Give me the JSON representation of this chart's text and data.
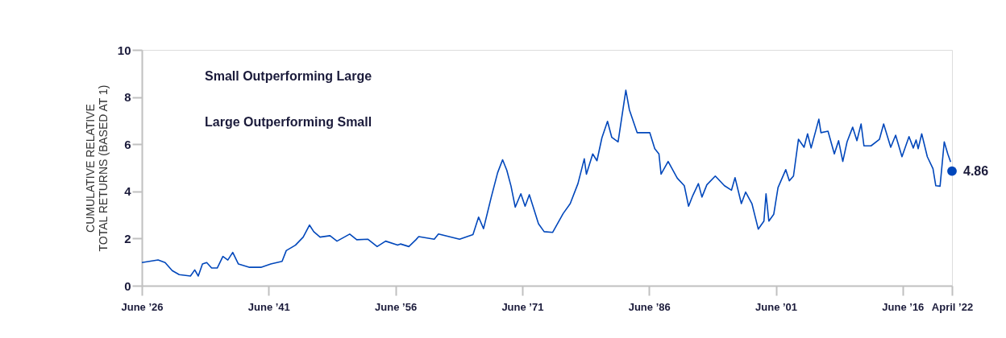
{
  "chart_data": {
    "type": "line",
    "ylabel": "CUMULATIVE RELATIVE TOTAL RETURNS (BASED AT 1)",
    "x": [
      "1926-06",
      "1928-05",
      "1929-03",
      "1930-01",
      "1930-11",
      "1932-03",
      "1932-09",
      "1933-02",
      "1933-08",
      "1934-02",
      "1934-09",
      "1935-05",
      "1936-01",
      "1936-08",
      "1937-03",
      "1937-11",
      "1939-03",
      "1940-07",
      "1941-09",
      "1943-01",
      "1943-07",
      "1944-08",
      "1945-07",
      "1946-04",
      "1946-10",
      "1947-07",
      "1948-09",
      "1949-07",
      "1951-01",
      "1951-11",
      "1953-03",
      "1954-04",
      "1955-04",
      "1956-09",
      "1957-01",
      "1958-01",
      "1958-11",
      "1959-03",
      "1961-01",
      "1961-07",
      "1964-01",
      "1965-08",
      "1966-04",
      "1966-11",
      "1967-10",
      "1968-07",
      "1969-02",
      "1969-08",
      "1970-02",
      "1970-08",
      "1971-04",
      "1971-10",
      "1972-04",
      "1973-05",
      "1974-01",
      "1975-01",
      "1976-04",
      "1977-02",
      "1978-01",
      "1978-10",
      "1979-01",
      "1979-10",
      "1980-04",
      "1980-11",
      "1981-07",
      "1982-01",
      "1982-10",
      "1983-09",
      "1984-02",
      "1985-01",
      "1986-07",
      "1987-02",
      "1987-08",
      "1987-11",
      "1988-09",
      "1989-10",
      "1990-08",
      "1991-02",
      "1991-08",
      "1992-04",
      "1992-09",
      "1993-04",
      "1994-04",
      "1995-05",
      "1996-03",
      "1996-08",
      "1997-05",
      "1997-11",
      "1998-08",
      "1999-05",
      "2000-01",
      "2000-04",
      "2000-08",
      "2001-03",
      "2001-09",
      "2002-08",
      "2003-01",
      "2003-07",
      "2004-02",
      "2004-10",
      "2005-03",
      "2005-08",
      "2006-07",
      "2006-10",
      "2007-08",
      "2008-05",
      "2008-11",
      "2009-05",
      "2009-11",
      "2010-07",
      "2011-01",
      "2011-07",
      "2011-11",
      "2012-09",
      "2013-09",
      "2014-03",
      "2015-01",
      "2015-08",
      "2016-05",
      "2017-03",
      "2017-09",
      "2018-01",
      "2018-04",
      "2018-09",
      "2019-05",
      "2020-01",
      "2020-05",
      "2020-11",
      "2021-05",
      "2021-10",
      "2022-02"
    ],
    "series": [
      {
        "color": "#0047bb",
        "values": [
          0.98,
          1.09,
          0.98,
          0.64,
          0.47,
          0.41,
          0.67,
          0.41,
          0.92,
          0.98,
          0.75,
          0.75,
          1.24,
          1.09,
          1.41,
          0.92,
          0.78,
          0.78,
          0.92,
          1.03,
          1.49,
          1.72,
          2.06,
          2.57,
          2.29,
          2.06,
          2.12,
          1.89,
          2.19,
          1.95,
          1.97,
          1.66,
          1.89,
          1.72,
          1.77,
          1.66,
          1.95,
          2.08,
          1.97,
          2.19,
          1.97,
          2.17,
          2.91,
          2.42,
          3.76,
          4.79,
          5.34,
          4.9,
          4.22,
          3.33,
          3.9,
          3.37,
          3.86,
          2.63,
          2.29,
          2.26,
          3.06,
          3.48,
          4.33,
          5.38,
          4.73,
          5.59,
          5.3,
          6.27,
          6.97,
          6.29,
          6.1,
          8.29,
          7.46,
          6.49,
          6.49,
          5.81,
          5.59,
          4.73,
          5.27,
          4.56,
          4.24,
          3.37,
          3.82,
          4.33,
          3.76,
          4.28,
          4.65,
          4.24,
          4.05,
          4.58,
          3.48,
          3.97,
          3.48,
          2.4,
          2.74,
          3.9,
          2.74,
          3.03,
          4.16,
          4.92,
          4.45,
          4.65,
          6.21,
          5.87,
          6.44,
          5.84,
          7.06,
          6.49,
          6.55,
          5.59,
          6.15,
          5.27,
          6.1,
          6.72,
          6.15,
          6.86,
          5.93,
          5.93,
          6.21,
          6.86,
          5.87,
          6.38,
          5.47,
          6.32,
          5.84,
          6.18,
          5.81,
          6.44,
          5.47,
          4.96,
          4.24,
          4.22,
          6.1,
          5.59,
          5.25
        ]
      }
    ],
    "xlim": [
      "1926-06",
      "2022-04"
    ],
    "xticks": [
      {
        "value": "1926-06",
        "label": "June ’26"
      },
      {
        "value": "1941-06",
        "label": "June ’41"
      },
      {
        "value": "1956-06",
        "label": "June ’56"
      },
      {
        "value": "1971-06",
        "label": "June ’71"
      },
      {
        "value": "1986-06",
        "label": "June ’86"
      },
      {
        "value": "2001-06",
        "label": "June ’01"
      },
      {
        "value": "2016-06",
        "label": "June ’16"
      },
      {
        "value": "2022-04",
        "label": "April ’22"
      }
    ],
    "ylim": [
      0,
      10
    ],
    "yticks": [
      0,
      2,
      4,
      6,
      8,
      10
    ],
    "grid": false,
    "marker": "none",
    "line_style": "solid",
    "annotations": [
      "Small Outperforming Large",
      "Large Outperforming Small",
      {
        "text": "4.86",
        "x": "2022-04",
        "y": 4.86
      }
    ]
  }
}
